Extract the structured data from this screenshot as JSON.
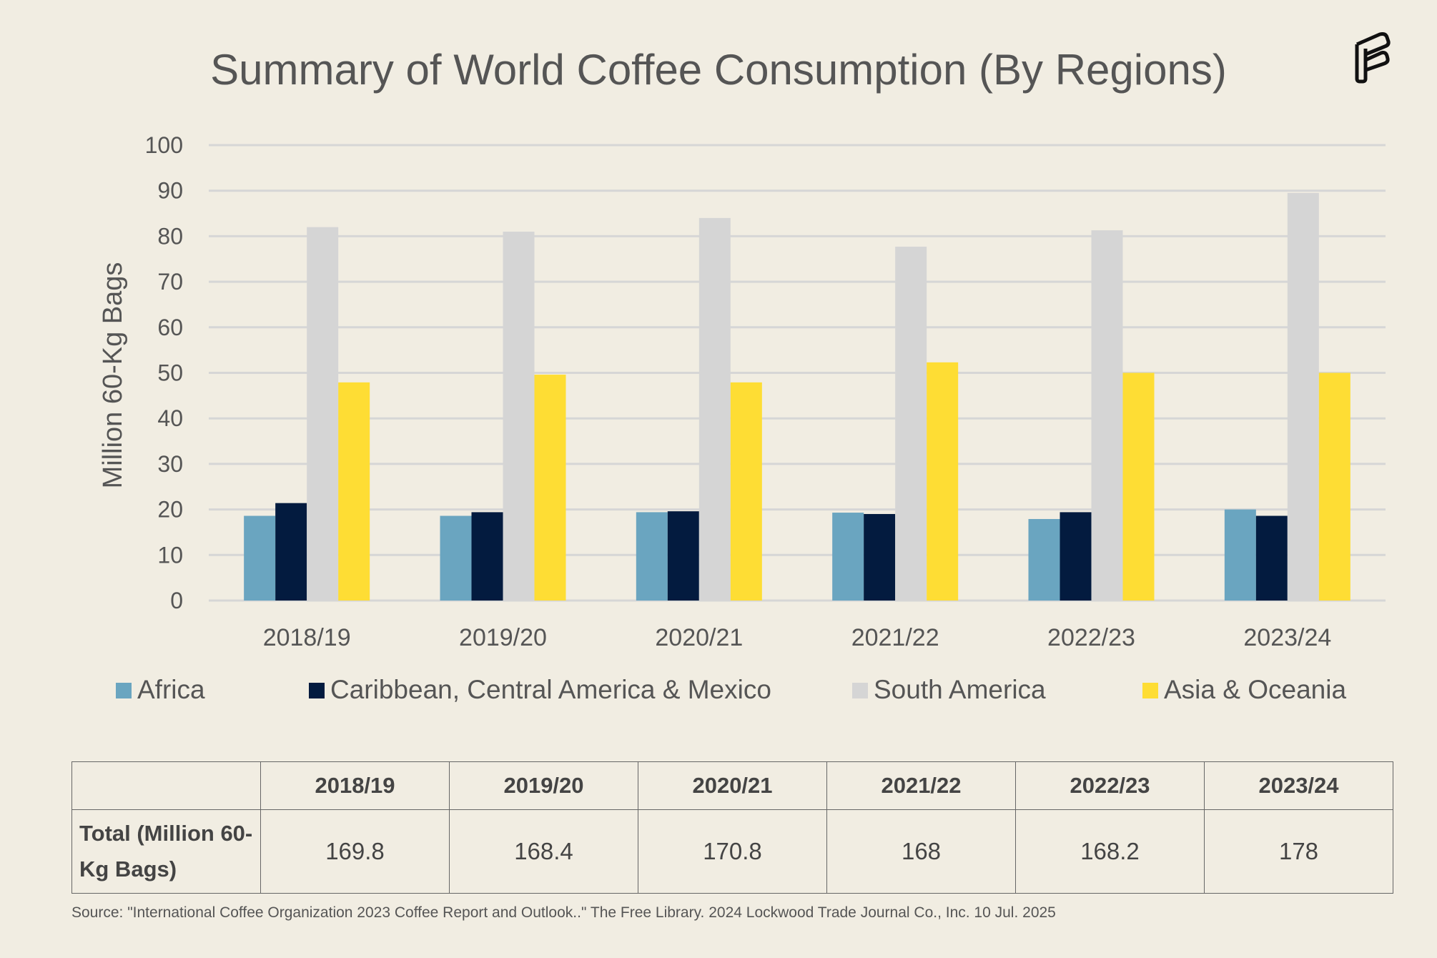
{
  "chart_data": {
    "type": "bar",
    "title": "Summary of World Coffee Consumption (By Regions)",
    "xlabel": "",
    "ylabel": "Million 60-Kg Bags",
    "ylim": [
      0,
      100
    ],
    "yticks": [
      0,
      10,
      20,
      30,
      40,
      50,
      60,
      70,
      80,
      90,
      100
    ],
    "grid": true,
    "legend_position": "bottom",
    "categories": [
      "2018/19",
      "2019/20",
      "2020/21",
      "2021/22",
      "2022/23",
      "2023/24"
    ],
    "series": [
      {
        "name": "Africa",
        "color": "#6aa5c0",
        "values": [
          18.6,
          18.6,
          19.4,
          19.3,
          17.9,
          20.0
        ]
      },
      {
        "name": "Caribbean, Central America & Mexico",
        "color": "#031b3f",
        "values": [
          21.4,
          19.4,
          19.6,
          19.0,
          19.4,
          18.6
        ]
      },
      {
        "name": "South America",
        "color": "#d5d5d5",
        "values": [
          82.0,
          81.0,
          84.0,
          77.7,
          81.3,
          89.5
        ]
      },
      {
        "name": "Asia & Oceania",
        "color": "#fedd34",
        "values": [
          47.9,
          49.6,
          47.9,
          52.3,
          50.0,
          50.0
        ]
      }
    ]
  },
  "table": {
    "headers": [
      "2018/19",
      "2019/20",
      "2020/21",
      "2021/22",
      "2022/23",
      "2023/24"
    ],
    "row_label": "Total (Million 60-Kg Bags)",
    "values": [
      "169.8",
      "168.4",
      "170.8",
      "168",
      "168.2",
      "178"
    ]
  },
  "source": "Source: \"International Coffee Organization 2023 Coffee Report and Outlook..\" The Free Library. 2024 Lockwood Trade Journal Co., Inc. 10 Jul. 2025",
  "logo_icon": "brand-f-logo-icon"
}
